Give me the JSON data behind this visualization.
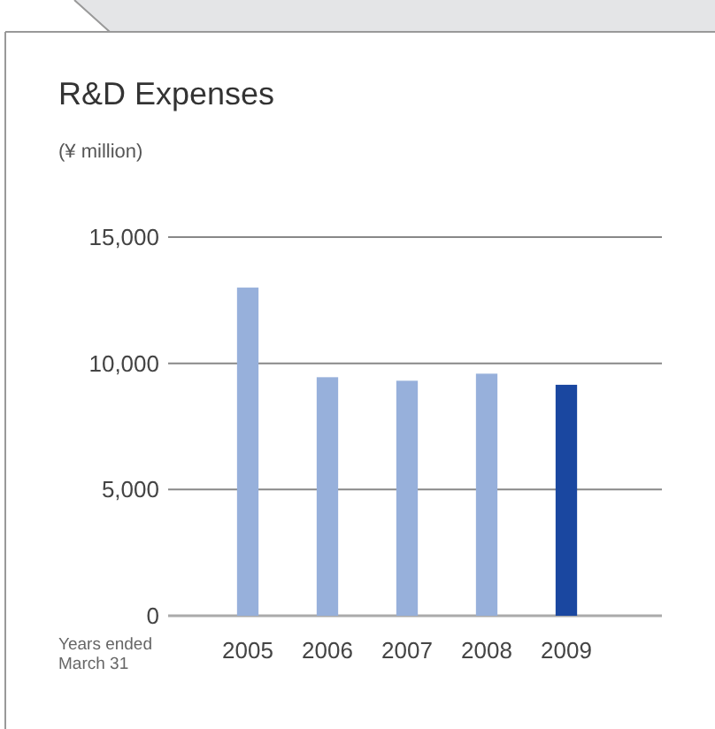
{
  "chart_data": {
    "type": "bar",
    "title": "R&D Expenses",
    "subtitle": "(¥ million)",
    "xlabel": "Years ended March 31",
    "categories": [
      "2005",
      "2006",
      "2007",
      "2008",
      "2009"
    ],
    "values": [
      13000,
      9450,
      9310,
      9590,
      9150
    ],
    "colors": [
      "#97b0db",
      "#97b0db",
      "#97b0db",
      "#97b0db",
      "#1a47a0"
    ],
    "ylim": [
      0,
      15000
    ],
    "yticks": [
      {
        "value": 0,
        "label": "0"
      },
      {
        "value": 5000,
        "label": "5,000"
      },
      {
        "value": 10000,
        "label": "10,000"
      },
      {
        "value": 15000,
        "label": "15,000"
      }
    ],
    "grid": "y"
  }
}
